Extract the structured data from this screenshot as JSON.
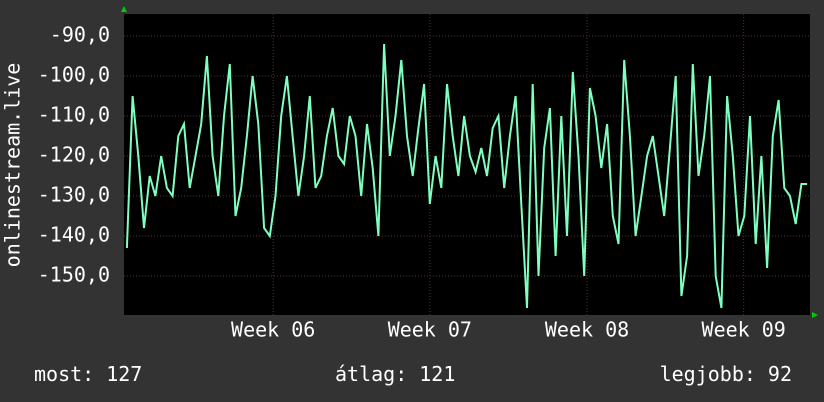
{
  "chart_data": {
    "type": "line",
    "ylabel": "onlinestream.live",
    "series": [
      {
        "name": "onlinestream.live",
        "color": "#7fffbf",
        "values": [
          -143,
          -105,
          -120,
          -138,
          -125,
          -130,
          -120,
          -128,
          -130,
          -115,
          -112,
          -128,
          -120,
          -112,
          -95,
          -120,
          -130,
          -110,
          -97,
          -135,
          -128,
          -115,
          -100,
          -112,
          -138,
          -140,
          -130,
          -110,
          -100,
          -115,
          -130,
          -120,
          -105,
          -128,
          -125,
          -115,
          -108,
          -120,
          -122,
          -110,
          -115,
          -130,
          -112,
          -123,
          -140,
          -92,
          -120,
          -110,
          -96,
          -115,
          -125,
          -113,
          -102,
          -132,
          -120,
          -128,
          -102,
          -115,
          -125,
          -110,
          -120,
          -124,
          -118,
          -125,
          -113,
          -110,
          -128,
          -115,
          -105,
          -132,
          -158,
          -102,
          -150,
          -118,
          -108,
          -145,
          -110,
          -140,
          -99,
          -120,
          -150,
          -103,
          -110,
          -123,
          -112,
          -135,
          -142,
          -96,
          -115,
          -140,
          -130,
          -120,
          -115,
          -125,
          -135,
          -118,
          -100,
          -155,
          -145,
          -97,
          -125,
          -115,
          -100,
          -150,
          -158,
          -105,
          -120,
          -140,
          -135,
          -110,
          -142,
          -120,
          -148,
          -115,
          -106,
          -128,
          -130,
          -137,
          -127,
          -127
        ]
      }
    ],
    "xlim": [
      0,
      120
    ],
    "xticks": [
      {
        "value": 26.1,
        "label": "Week 06"
      },
      {
        "value": 53.5,
        "label": "Week 07"
      },
      {
        "value": 81.0,
        "label": "Week 08"
      },
      {
        "value": 108.4,
        "label": "Week 09"
      }
    ],
    "ylim": [
      -159.75,
      -84.5
    ],
    "yticks": [
      {
        "value": -90,
        "label": "-90,0"
      },
      {
        "value": -100,
        "label": "-100,0"
      },
      {
        "value": -110,
        "label": "-110,0"
      },
      {
        "value": -120,
        "label": "-120,0"
      },
      {
        "value": -130,
        "label": "-130,0"
      },
      {
        "value": -140,
        "label": "-140,0"
      },
      {
        "value": -150,
        "label": "-150,0"
      }
    ],
    "grid": true,
    "stats": [
      {
        "label": "most:",
        "value": 127
      },
      {
        "label": "átlag:",
        "value": 121
      },
      {
        "label": "legjobb:",
        "value": 92
      }
    ]
  }
}
